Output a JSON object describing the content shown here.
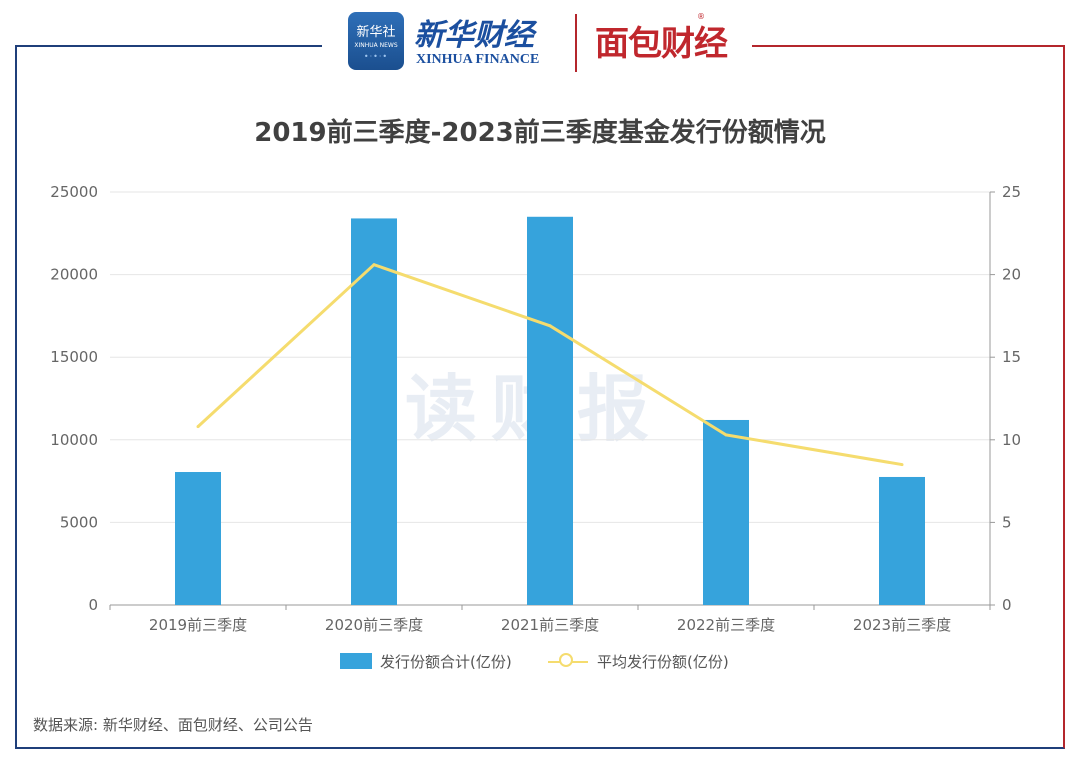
{
  "header": {
    "xinhua_badge": "新华社",
    "xinhua_badge_sub": "XINHUA NEWS",
    "xinhua_cn": "新华财经",
    "xinhua_en": "XINHUA FINANCE",
    "mianbao": "面包财经",
    "reg_mark": "®"
  },
  "watermark": "读财报",
  "source": "数据来源: 新华财经、面包财经、公司公告",
  "colors": {
    "bar": "#36a3dc",
    "line": "#f5dc6e",
    "frame_left": "#1f3f7a",
    "frame_right": "#b4262c"
  },
  "chart_data": {
    "type": "bar",
    "title": "2019前三季度-2023前三季度基金发行份额情况",
    "categories": [
      "2019前三季度",
      "2020前三季度",
      "2021前三季度",
      "2022前三季度",
      "2023前三季度"
    ],
    "series": [
      {
        "name": "发行份额合计(亿份)",
        "type": "bar",
        "axis": "left",
        "values": [
          8050,
          23400,
          23500,
          11200,
          7750
        ]
      },
      {
        "name": "平均发行份额(亿份)",
        "type": "line",
        "axis": "right",
        "values": [
          10.8,
          20.6,
          16.9,
          10.3,
          8.5
        ]
      }
    ],
    "y_left": {
      "ylim": [
        0,
        25000
      ],
      "ticks": [
        0,
        5000,
        10000,
        15000,
        20000,
        25000
      ]
    },
    "y_right": {
      "ylim": [
        0,
        25
      ],
      "ticks": [
        0,
        5,
        10,
        15,
        20,
        25
      ]
    },
    "grid": true,
    "legend": "bottom"
  }
}
